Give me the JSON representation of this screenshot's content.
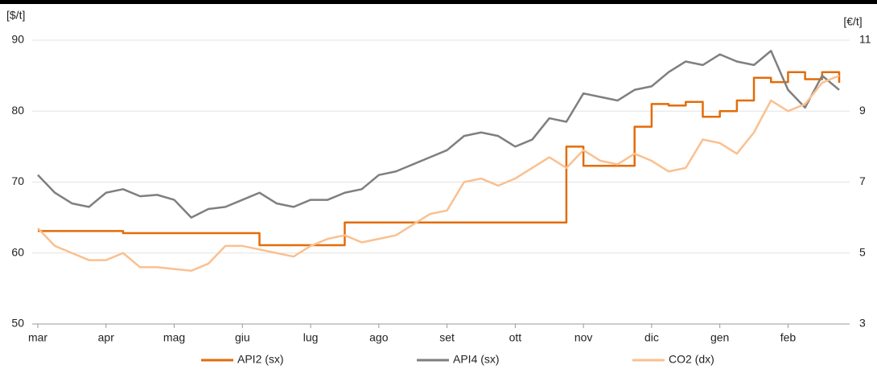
{
  "chart_data": {
    "type": "line",
    "ylabel": "[$/t]",
    "y2label": "[€/t]",
    "categories": [
      "mar",
      null,
      null,
      null,
      "apr",
      null,
      null,
      null,
      "mag",
      null,
      null,
      null,
      "giu",
      null,
      null,
      null,
      "lug",
      null,
      null,
      null,
      "ago",
      null,
      null,
      null,
      "set",
      null,
      null,
      null,
      "ott",
      null,
      null,
      null,
      "nov",
      null,
      null,
      null,
      "dic",
      null,
      null,
      null,
      "gen",
      null,
      null,
      null,
      "feb",
      null,
      null,
      null
    ],
    "series": [
      {
        "name": "API2 (sx)",
        "color": "#e36c09",
        "step": true,
        "values": [
          63.1,
          63.1,
          63.1,
          63.1,
          63.1,
          62.8,
          62.8,
          62.8,
          62.8,
          62.8,
          62.8,
          62.8,
          62.8,
          61.1,
          61.1,
          61.1,
          61.1,
          61.1,
          64.3,
          64.3,
          64.3,
          64.3,
          64.3,
          64.3,
          64.3,
          64.3,
          64.3,
          64.3,
          64.3,
          64.3,
          64.3,
          75,
          72.3,
          72.3,
          72.3,
          77.8,
          81,
          80.8,
          81.3,
          79.2,
          80,
          81.5,
          84.7,
          84.1,
          85.5,
          84.5,
          85.5,
          84
        ]
      },
      {
        "name": "API4 (sx)",
        "color": "#7f7f7f",
        "values": [
          71,
          68.5,
          67,
          66.5,
          68.5,
          69,
          68,
          68.2,
          67.5,
          65,
          66.2,
          66.5,
          67.5,
          68.5,
          67,
          66.5,
          67.5,
          67.5,
          68.5,
          69,
          71,
          71.5,
          72.5,
          73.5,
          74.5,
          76.5,
          77,
          76.5,
          75,
          76,
          79,
          78.5,
          82.5,
          82,
          81.5,
          83,
          83.5,
          85.5,
          87,
          86.5,
          88,
          87,
          86.5,
          88.5,
          83,
          80.5,
          85,
          83
        ]
      },
      {
        "name": "CO2 (dx)",
        "color": "#fac090",
        "axis": "y2",
        "values": [
          5.7,
          5.2,
          5.0,
          4.8,
          4.8,
          5.0,
          4.6,
          4.6,
          4.55,
          4.5,
          4.7,
          5.2,
          5.2,
          5.1,
          5.0,
          4.9,
          5.2,
          5.4,
          5.5,
          5.3,
          5.4,
          5.5,
          5.8,
          6.1,
          6.2,
          7.0,
          7.1,
          6.9,
          7.1,
          7.4,
          7.7,
          7.4,
          7.9,
          7.6,
          7.5,
          7.8,
          7.6,
          7.3,
          7.4,
          8.2,
          8.1,
          7.8,
          8.4,
          9.3,
          9.0,
          9.2,
          9.8,
          10.0
        ]
      }
    ],
    "ylim": [
      50,
      90
    ],
    "yticks": [
      50,
      60,
      70,
      80,
      90
    ],
    "y2lim": [
      3,
      11
    ],
    "y2ticks": [
      3,
      5,
      7,
      9,
      11
    ],
    "grid": true,
    "legend": "bottom"
  }
}
